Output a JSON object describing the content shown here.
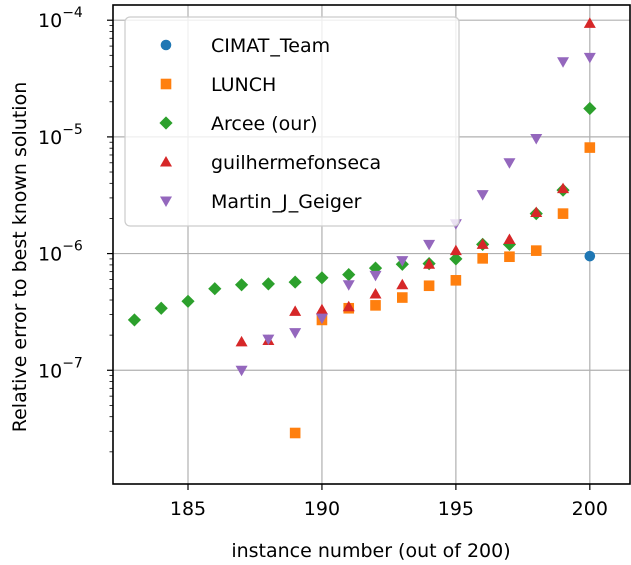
{
  "chart_data": {
    "type": "scatter",
    "xlabel": "instance number (out of 200)",
    "ylabel": "Relative error to best known solution",
    "x_scale": "linear",
    "y_scale": "log",
    "xlim": [
      182.2,
      201.5
    ],
    "ylim": [
      1.06e-08,
      0.000135
    ],
    "x_ticks": [
      185,
      190,
      195,
      200
    ],
    "x_tick_labels": [
      "185",
      "190",
      "195",
      "200"
    ],
    "y_ticks": [
      1e-07,
      1e-06,
      1e-05,
      0.0001
    ],
    "y_tick_labels": [
      {
        "base": "10",
        "exp": "−7"
      },
      {
        "base": "10",
        "exp": "−6"
      },
      {
        "base": "10",
        "exp": "−5"
      },
      {
        "base": "10",
        "exp": "−4"
      }
    ],
    "grid": true,
    "legend_position": "top-left",
    "series": [
      {
        "name": "CIMAT_Team",
        "display": [
          "CIMAT",
          "Team"
        ],
        "marker": "circle",
        "color": "#1f77b4",
        "x": [
          200
        ],
        "y": [
          9.5e-07
        ]
      },
      {
        "name": "LUNCH",
        "display": [
          "LUNCH"
        ],
        "marker": "square",
        "color": "#ff7f0e",
        "x": [
          189,
          190,
          191,
          192,
          193,
          194,
          195,
          196,
          197,
          198,
          199,
          200
        ],
        "y": [
          2.9e-08,
          2.7e-07,
          3.4e-07,
          3.6e-07,
          4.2e-07,
          5.3e-07,
          5.9e-07,
          9.1e-07,
          9.4e-07,
          1.06e-06,
          2.2e-06,
          8.1e-06
        ]
      },
      {
        "name": "Arcee (our)",
        "display": [
          "Arcee (our)"
        ],
        "marker": "diamond",
        "color": "#2ca02c",
        "x": [
          183,
          184,
          185,
          186,
          187,
          188,
          189,
          190,
          191,
          192,
          193,
          194,
          195,
          196,
          197,
          198,
          199,
          200
        ],
        "y": [
          2.7e-07,
          3.4e-07,
          3.9e-07,
          5e-07,
          5.4e-07,
          5.5e-07,
          5.7e-07,
          6.2e-07,
          6.6e-07,
          7.5e-07,
          8.1e-07,
          8.2e-07,
          9e-07,
          1.2e-06,
          1.2e-06,
          2.2e-06,
          3.5e-06,
          1.75e-05
        ]
      },
      {
        "name": "guilhermefonseca",
        "display": [
          "guilhermefonseca"
        ],
        "marker": "triangle-up",
        "color": "#d62728",
        "x": [
          187,
          188,
          189,
          190,
          191,
          192,
          193,
          194,
          195,
          196,
          197,
          198,
          199,
          200
        ],
        "y": [
          1.75e-07,
          1.8e-07,
          3.2e-07,
          3.3e-07,
          3.5e-07,
          4.5e-07,
          5.4e-07,
          8.1e-07,
          1.06e-06,
          1.2e-06,
          1.32e-06,
          2.25e-06,
          3.6e-06,
          9.4e-05
        ]
      },
      {
        "name": "Martin_J_Geiger",
        "display": [
          "Martin",
          "J",
          "Geiger"
        ],
        "marker": "triangle-down",
        "color": "#9467bd",
        "x": [
          187,
          188,
          189,
          190,
          191,
          192,
          193,
          194,
          195,
          196,
          197,
          198,
          199,
          200
        ],
        "y": [
          1e-07,
          1.85e-07,
          2.1e-07,
          2.8e-07,
          5.4e-07,
          6.5e-07,
          8.7e-07,
          1.2e-06,
          1.8e-06,
          3.2e-06,
          6e-06,
          9.7e-06,
          4.4e-05,
          4.8e-05
        ]
      }
    ]
  }
}
